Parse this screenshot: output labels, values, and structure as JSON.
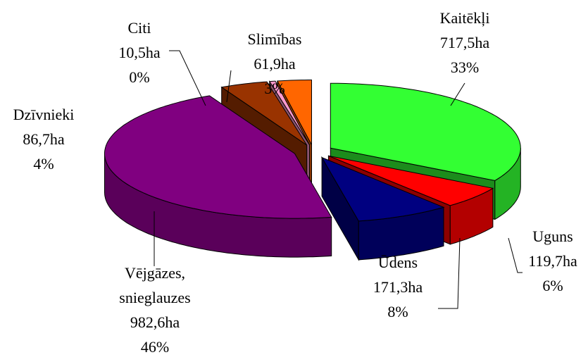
{
  "chart_data": {
    "type": "pie3d",
    "categories": [
      "Kaitēkļi",
      "Uguns",
      "Ūdens",
      "Vējgāzes, snieglauzes",
      "Dzīvnieki",
      "Citi",
      "Slimības"
    ],
    "values": [
      717.5,
      119.7,
      171.3,
      982.6,
      86.7,
      10.5,
      61.9
    ],
    "value_labels": [
      "717,5ha",
      "119,7ha",
      "171,3ha",
      "982,6ha",
      "86,7ha",
      "10,5ha",
      "61,9ha"
    ],
    "percent_labels": [
      "33%",
      "6%",
      "8%",
      "46%",
      "4%",
      "0%",
      "3%"
    ],
    "colors": [
      "#33ff33",
      "#ff0000",
      "#000080",
      "#800080",
      "#993300",
      "#ff99cc",
      "#ff6600"
    ]
  }
}
